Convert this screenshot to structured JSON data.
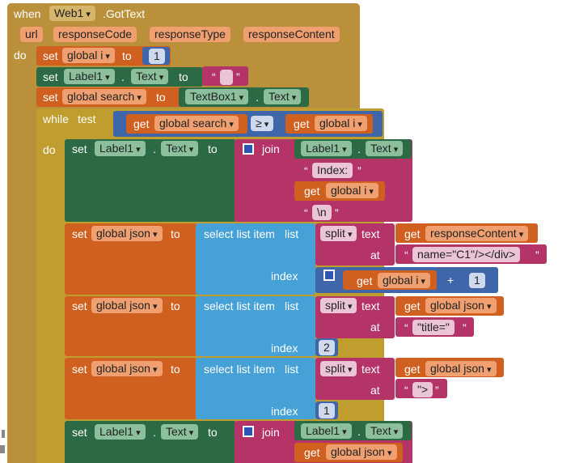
{
  "event": {
    "when": "when",
    "component": "Web1",
    "method": ".GotText",
    "params": [
      "url",
      "responseCode",
      "responseType",
      "responseContent"
    ],
    "do": "do"
  },
  "kw": {
    "set": "set",
    "to": "to",
    "get": "get",
    "while": "while",
    "test": "test",
    "do": "do",
    "join": "join",
    "select": "select list item",
    "list": "list",
    "index": "index",
    "split": "split",
    "text": "text",
    "at": "at",
    "dot": ".",
    "open_q": "“",
    "close_q": "”",
    "plus": "+",
    "gte": "≥"
  },
  "vars": {
    "i": "global i",
    "search": "global search",
    "json": "global json"
  },
  "comp": {
    "label": "Label1",
    "textbox": "TextBox1",
    "prop_text": "Text"
  },
  "values": {
    "init_i": "1",
    "empty": "",
    "index_label": "Index:",
    "newline": "\\n",
    "response_content": "responseContent",
    "split1": "name=\"C1\"/></div>",
    "one": "1",
    "title_str": "\"title=\"",
    "two": "2",
    "gt_str": "\">",
    "one_b": "1"
  },
  "colors": {
    "event": "#ba913a",
    "variable": "#d0601f",
    "component": "#2c6a45",
    "text": "#b53467",
    "list": "#45a1d6",
    "math": "#3e66a9"
  }
}
